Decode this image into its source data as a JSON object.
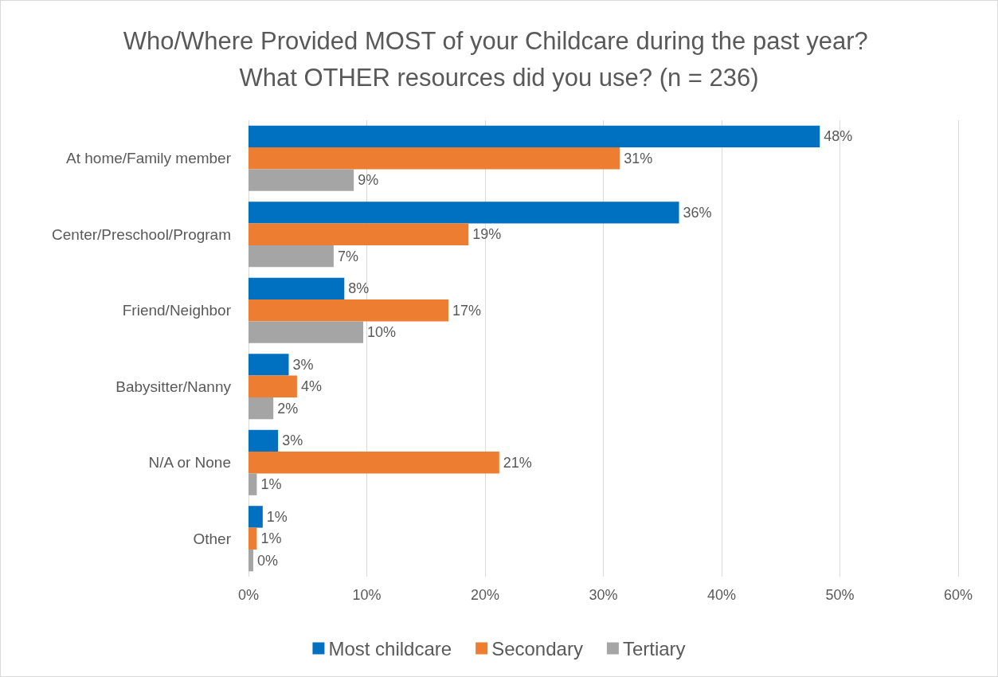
{
  "chart_data": {
    "type": "bar",
    "orientation": "horizontal",
    "title": "Who/Where Provided MOST of your Childcare during the past year? What OTHER resources did you use? (n = 236)",
    "categories": [
      "At home/Family member",
      "Center/Preschool/Program",
      "Friend/Neighbor",
      "Babysitter/Nanny",
      "N/A or None",
      "Other"
    ],
    "series": [
      {
        "name": "Most childcare",
        "color": "#0070c0",
        "values": [
          48.3,
          36.4,
          8.1,
          3.4,
          2.5,
          1.2
        ],
        "value_labels": [
          "48%",
          "36%",
          "8%",
          "3%",
          "3%",
          "1%"
        ]
      },
      {
        "name": "Secondary",
        "color": "#ed7d31",
        "values": [
          31.4,
          18.6,
          16.9,
          4.1,
          21.2,
          0.7
        ],
        "value_labels": [
          "31%",
          "19%",
          "17%",
          "4%",
          "21%",
          "1%"
        ]
      },
      {
        "name": "Tertiary",
        "color": "#a5a5a5",
        "values": [
          8.9,
          7.2,
          9.7,
          2.1,
          0.7,
          0.4
        ],
        "value_labels": [
          "9%",
          "7%",
          "10%",
          "2%",
          "1%",
          "0%"
        ]
      }
    ],
    "xlim": [
      0,
      60
    ],
    "xticks": [
      {
        "value": 0,
        "label": "0%"
      },
      {
        "value": 10,
        "label": "10%"
      },
      {
        "value": 20,
        "label": "20%"
      },
      {
        "value": 30,
        "label": "30%"
      },
      {
        "value": 40,
        "label": "40%"
      },
      {
        "value": 50,
        "label": "50%"
      },
      {
        "value": 60,
        "label": "60%"
      }
    ],
    "grid": "x",
    "legend": "bottom"
  }
}
